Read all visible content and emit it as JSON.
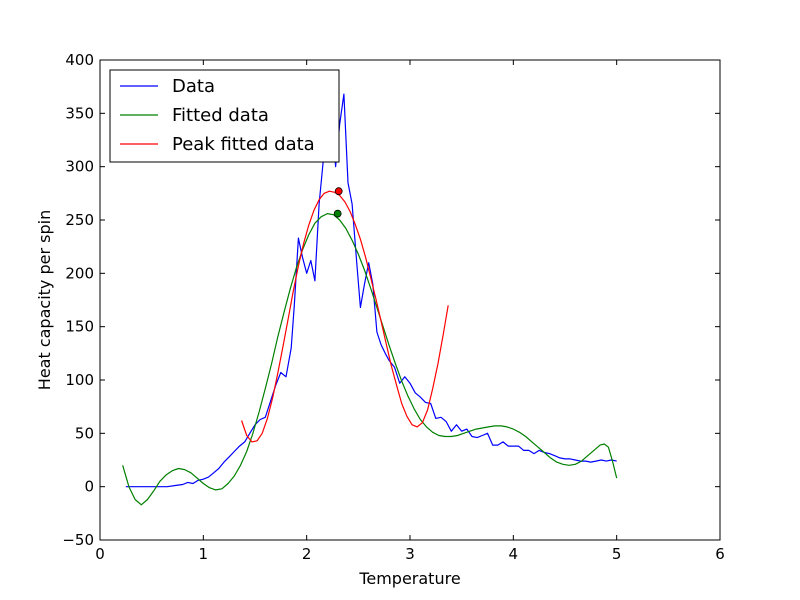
{
  "chart_data": {
    "type": "line",
    "title": "",
    "xlabel": "Temperature",
    "ylabel": "Heat capacity per spin",
    "xlim": [
      0,
      6
    ],
    "ylim": [
      -50,
      400
    ],
    "xticks": [
      "0",
      "1",
      "2",
      "3",
      "4",
      "5",
      "6"
    ],
    "yticks": [
      "−50",
      "0",
      "50",
      "100",
      "150",
      "200",
      "250",
      "300",
      "350",
      "400"
    ],
    "grid": false,
    "legend_position": "top-left",
    "series": [
      {
        "name": "Data",
        "color": "#0000ff",
        "x": [
          0.25,
          0.35,
          0.45,
          0.55,
          0.65,
          0.72,
          0.8,
          0.85,
          0.9,
          0.95,
          1.0,
          1.05,
          1.1,
          1.15,
          1.2,
          1.25,
          1.3,
          1.35,
          1.4,
          1.45,
          1.5,
          1.55,
          1.6,
          1.65,
          1.7,
          1.75,
          1.8,
          1.85,
          1.88,
          1.92,
          1.96,
          2.0,
          2.04,
          2.08,
          2.12,
          2.16,
          2.2,
          2.24,
          2.28,
          2.32,
          2.36,
          2.4,
          2.44,
          2.48,
          2.52,
          2.56,
          2.6,
          2.64,
          2.68,
          2.72,
          2.76,
          2.8,
          2.85,
          2.9,
          2.95,
          3.0,
          3.05,
          3.1,
          3.15,
          3.2,
          3.25,
          3.3,
          3.35,
          3.4,
          3.45,
          3.5,
          3.55,
          3.6,
          3.65,
          3.7,
          3.75,
          3.8,
          3.85,
          3.9,
          3.95,
          4.0,
          4.05,
          4.1,
          4.15,
          4.2,
          4.25,
          4.3,
          4.35,
          4.4,
          4.45,
          4.5,
          4.55,
          4.6,
          4.65,
          4.7,
          4.75,
          4.8,
          4.85,
          4.9,
          4.95,
          5.0
        ],
        "y": [
          0,
          0,
          0,
          0,
          0,
          1,
          2,
          4,
          3,
          6,
          7,
          9,
          13,
          17,
          23,
          28,
          33,
          38,
          42,
          50,
          58,
          63,
          65,
          80,
          95,
          107,
          103,
          130,
          170,
          233,
          215,
          200,
          212,
          193,
          265,
          305,
          330,
          355,
          300,
          340,
          368,
          285,
          265,
          215,
          168,
          190,
          210,
          190,
          145,
          133,
          125,
          118,
          112,
          97,
          103,
          97,
          88,
          84,
          79,
          78,
          64,
          65,
          61,
          52,
          58,
          52,
          54,
          47,
          46,
          48,
          50,
          39,
          39,
          42,
          38,
          38,
          38,
          34,
          34,
          31,
          34,
          32,
          31,
          29,
          27,
          26,
          26,
          25,
          24,
          24,
          23,
          24,
          25,
          24,
          25,
          24
        ],
        "x2": null
      },
      {
        "name": "Fitted data",
        "color": "#008000",
        "x": [
          0.22,
          0.28,
          0.34,
          0.4,
          0.46,
          0.52,
          0.58,
          0.64,
          0.7,
          0.76,
          0.82,
          0.88,
          0.94,
          1.0,
          1.06,
          1.12,
          1.18,
          1.24,
          1.3,
          1.36,
          1.42,
          1.48,
          1.54,
          1.6,
          1.66,
          1.72,
          1.78,
          1.84,
          1.9,
          1.96,
          2.02,
          2.08,
          2.14,
          2.2,
          2.26,
          2.32,
          2.38,
          2.44,
          2.5,
          2.56,
          2.62,
          2.68,
          2.74,
          2.8,
          2.86,
          2.92,
          2.98,
          3.04,
          3.1,
          3.16,
          3.22,
          3.28,
          3.34,
          3.4,
          3.46,
          3.52,
          3.58,
          3.64,
          3.7,
          3.76,
          3.82,
          3.88,
          3.94,
          4.0,
          4.06,
          4.12,
          4.18,
          4.24,
          4.3,
          4.36,
          4.42,
          4.48,
          4.54,
          4.6,
          4.66,
          4.72,
          4.78,
          4.84,
          4.88,
          4.92,
          4.96,
          5.0
        ],
        "y": [
          20,
          0,
          -12,
          -17,
          -12,
          -4,
          5,
          11,
          15,
          17,
          16,
          13,
          8,
          3,
          -1,
          -3,
          -2,
          3,
          10,
          20,
          33,
          50,
          70,
          92,
          115,
          140,
          163,
          185,
          205,
          222,
          236,
          247,
          253,
          256,
          255,
          250,
          242,
          231,
          218,
          203,
          186,
          168,
          150,
          132,
          115,
          99,
          85,
          73,
          63,
          56,
          51,
          48,
          47,
          47,
          48,
          50,
          52,
          54,
          55,
          56,
          57,
          57,
          56,
          54,
          51,
          47,
          42,
          37,
          32,
          27,
          23,
          21,
          20,
          21,
          24,
          29,
          34,
          39,
          40,
          37,
          24,
          8
        ]
      },
      {
        "name": "Peak fitted data",
        "color": "#ff0000",
        "x": [
          1.37,
          1.42,
          1.47,
          1.52,
          1.57,
          1.62,
          1.67,
          1.72,
          1.77,
          1.82,
          1.87,
          1.92,
          1.97,
          2.02,
          2.07,
          2.12,
          2.17,
          2.22,
          2.27,
          2.32,
          2.37,
          2.42,
          2.47,
          2.52,
          2.57,
          2.62,
          2.67,
          2.72,
          2.77,
          2.82,
          2.87,
          2.92,
          2.97,
          3.02,
          3.07,
          3.12,
          3.17,
          3.22,
          3.27,
          3.32,
          3.37
        ],
        "y": [
          62,
          48,
          42,
          43,
          50,
          64,
          83,
          106,
          131,
          157,
          183,
          207,
          228,
          245,
          259,
          269,
          275,
          277,
          276,
          273,
          267,
          258,
          246,
          232,
          215,
          196,
          176,
          155,
          134,
          113,
          95,
          78,
          66,
          58,
          56,
          60,
          72,
          92,
          115,
          142,
          170
        ]
      }
    ],
    "peak_markers": [
      {
        "x": 2.31,
        "y": 277,
        "color": "#ff0000"
      },
      {
        "x": 2.3,
        "y": 256,
        "color": "#008000"
      }
    ]
  }
}
